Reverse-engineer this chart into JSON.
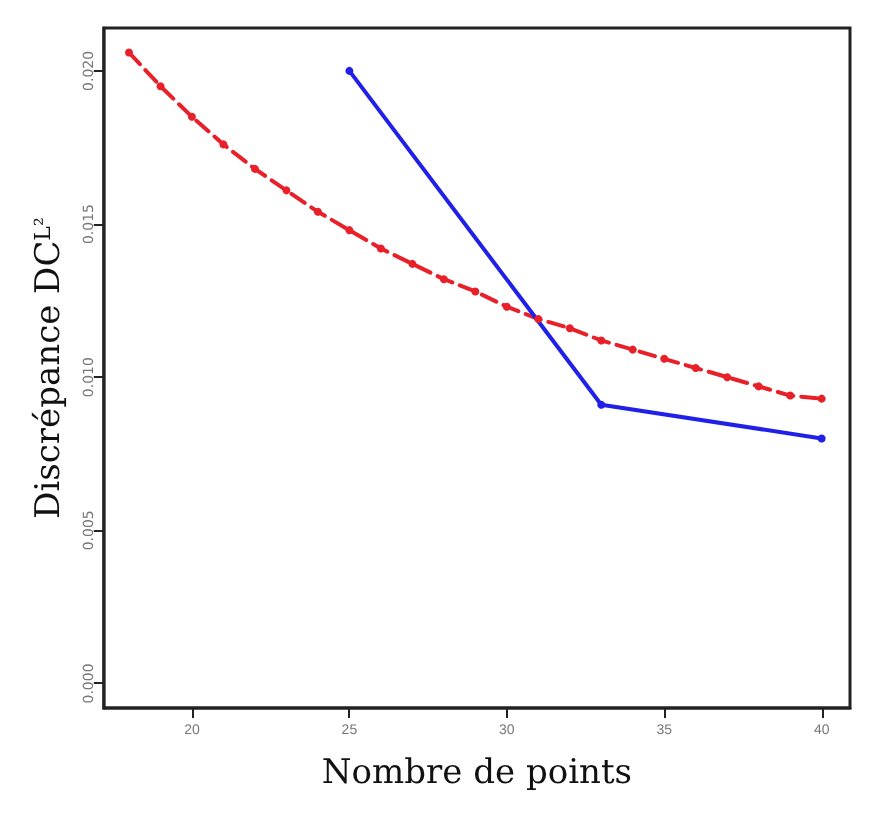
{
  "chart_data": {
    "type": "line",
    "xlabel": "Nombre de points",
    "ylabel": "Discrépance DC$^{L²}$",
    "xlim": [
      17.2,
      40.9
    ],
    "ylim": [
      -0.0008,
      0.0214
    ],
    "xticks": [
      20,
      25,
      30,
      35,
      40
    ],
    "yticks": [
      {
        "value": 0,
        "label": "0.000"
      },
      {
        "value": 0.005,
        "label": "0.005"
      },
      {
        "value": 0.01,
        "label": "0.010"
      },
      {
        "value": 0.015,
        "label": "0.015"
      },
      {
        "value": 0.02,
        "label": "0.020"
      }
    ],
    "series": [
      {
        "color": "#e8202a",
        "line_style": "dashed",
        "x": [
          18,
          19,
          20,
          21,
          22,
          23,
          24,
          25,
          26,
          27,
          28,
          29,
          30,
          31,
          32,
          33,
          34,
          35,
          36,
          37,
          38,
          39,
          40
        ],
        "values": [
          0.0206,
          0.0195,
          0.0185,
          0.0176,
          0.0168,
          0.0161,
          0.0154,
          0.0148,
          0.0142,
          0.0137,
          0.0132,
          0.0128,
          0.0123,
          0.0119,
          0.0116,
          0.0112,
          0.0109,
          0.0106,
          0.0103,
          0.01,
          0.0097,
          0.0094,
          0.0093
        ]
      },
      {
        "color": "#2020e8",
        "line_style": "solid",
        "x": [
          25,
          33,
          40
        ],
        "values": [
          0.02,
          0.0091,
          0.008
        ]
      }
    ],
    "marker": "circle",
    "grid": false
  }
}
